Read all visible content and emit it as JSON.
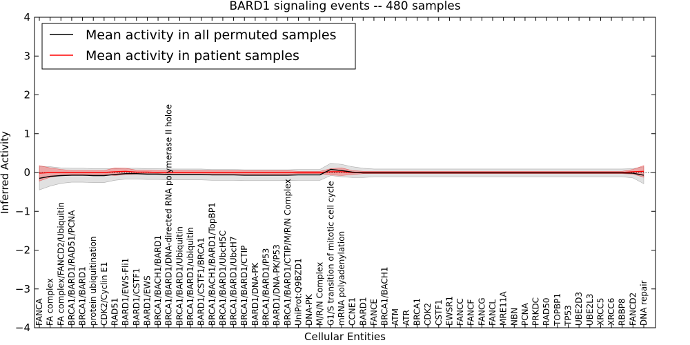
{
  "chart_data": {
    "type": "line",
    "title": "BARD1 signaling events -- 480 samples",
    "xlabel": "Cellular Entities",
    "ylabel": "Inferred Activity",
    "ylim": [
      -4,
      4
    ],
    "yticks": [
      "−4",
      "−3",
      "−2",
      "−1",
      "0",
      "1",
      "2",
      "3",
      "4"
    ],
    "categories": [
      "FANCA",
      "FA complex",
      "FA complex/FANCD2/Ubiquitin",
      "BRCA1/BARD1/RAD51/PCNA",
      "BRCA1/BARD1",
      "protein ubiquitination",
      "CDK2/Cyclin E1",
      "RAD51",
      "BARD1/EWS-Fli1",
      "BARD1/CSTF1",
      "BARD1/EWS",
      "BRCA1/BACH1/BARD1",
      "BRCA1/BARD1/DNA-directed RNA polymerase II holoe",
      "BRCA1/BARD1/Ubiquitin",
      "BRCA1/BARD1/ubiquitin",
      "BARD1/CSTF1/BRCA1",
      "BRCA1/BACH1/BARD1/TopBP1",
      "BRCA1/BARD1/UbcH5C",
      "BRCA1/BARD1/UbcH7",
      "BRCA1/BARD1/CTIP",
      "BARD1/DNA-PK",
      "BRCA1/BARD1/P53",
      "BARD1/DNA-PK/P53",
      "BRCA1/BARD1/CTIP/M/R/N Complex",
      "UniProt:Q9BZD1",
      "DNA-PK",
      "M/R/N Complex",
      "G1/S transition of mitotic cell cycle",
      "mRNA polyadenylation",
      "CCNE1",
      "BARD1",
      "FANCE",
      "BRCA1/BACH1",
      "ATM",
      "ATR",
      "BRCA1",
      "CDK2",
      "CSTF1",
      "EWSR1",
      "FANCC",
      "FANCF",
      "FANCG",
      "FANCL",
      "MRE11A",
      "NBN",
      "PCNA",
      "PRKDC",
      "RAD50",
      "TOPBP1",
      "TP53",
      "UBE2D3",
      "UBE2L3",
      "XRCC5",
      "XRCC6",
      "RBBP8",
      "FANCD2",
      "DNA repair"
    ],
    "series": [
      {
        "name": "Mean activity in all permuted samples",
        "color": "#000000",
        "values": [
          -0.15,
          -0.1,
          -0.08,
          -0.07,
          -0.07,
          -0.08,
          -0.08,
          -0.05,
          -0.03,
          -0.03,
          -0.04,
          -0.04,
          -0.05,
          -0.05,
          -0.05,
          -0.05,
          -0.06,
          -0.06,
          -0.06,
          -0.07,
          -0.07,
          -0.07,
          -0.07,
          -0.07,
          -0.06,
          -0.06,
          -0.06,
          0.08,
          0.05,
          0.01,
          -0.01,
          -0.01,
          -0.01,
          -0.01,
          -0.01,
          -0.01,
          -0.01,
          -0.01,
          -0.01,
          -0.01,
          -0.01,
          -0.01,
          -0.01,
          -0.01,
          -0.01,
          -0.01,
          -0.01,
          -0.01,
          -0.01,
          -0.01,
          -0.01,
          -0.01,
          -0.01,
          -0.01,
          -0.01,
          -0.02,
          -0.07
        ],
        "band": [
          0.3,
          0.25,
          0.2,
          0.18,
          0.18,
          0.18,
          0.18,
          0.15,
          0.14,
          0.14,
          0.14,
          0.14,
          0.14,
          0.14,
          0.14,
          0.14,
          0.14,
          0.14,
          0.14,
          0.14,
          0.14,
          0.14,
          0.14,
          0.14,
          0.14,
          0.14,
          0.14,
          0.16,
          0.16,
          0.14,
          0.12,
          0.1,
          0.1,
          0.1,
          0.1,
          0.1,
          0.1,
          0.1,
          0.1,
          0.1,
          0.1,
          0.1,
          0.1,
          0.1,
          0.1,
          0.1,
          0.1,
          0.1,
          0.1,
          0.1,
          0.1,
          0.1,
          0.1,
          0.1,
          0.1,
          0.12,
          0.22
        ]
      },
      {
        "name": "Mean activity in patient samples",
        "color": "#ff0000",
        "values": [
          -0.02,
          0.0,
          0.0,
          0.0,
          0.0,
          0.0,
          0.0,
          0.02,
          0.03,
          0.01,
          0.01,
          0.0,
          0.0,
          0.0,
          0.0,
          0.0,
          0.0,
          0.0,
          0.0,
          0.0,
          0.0,
          0.0,
          0.0,
          0.0,
          0.0,
          0.0,
          0.0,
          0.02,
          0.02,
          0.0,
          0.0,
          0.0,
          0.0,
          0.0,
          0.0,
          0.0,
          0.0,
          0.0,
          0.0,
          0.0,
          0.0,
          0.0,
          0.0,
          0.0,
          0.0,
          0.0,
          0.0,
          0.0,
          0.0,
          0.0,
          0.0,
          0.0,
          0.0,
          0.0,
          0.0,
          0.02,
          0.03
        ],
        "band": [
          0.2,
          0.12,
          0.08,
          0.05,
          0.05,
          0.05,
          0.05,
          0.1,
          0.08,
          0.05,
          0.05,
          0.05,
          0.05,
          0.05,
          0.05,
          0.05,
          0.05,
          0.05,
          0.05,
          0.05,
          0.05,
          0.05,
          0.05,
          0.05,
          0.03,
          0.03,
          0.03,
          0.08,
          0.1,
          0.05,
          0.03,
          0.03,
          0.03,
          0.03,
          0.03,
          0.03,
          0.03,
          0.03,
          0.03,
          0.03,
          0.03,
          0.03,
          0.03,
          0.03,
          0.03,
          0.03,
          0.03,
          0.03,
          0.03,
          0.03,
          0.03,
          0.03,
          0.03,
          0.03,
          0.03,
          0.06,
          0.15
        ]
      }
    ],
    "legend": {
      "position": "top-left",
      "entries": [
        "Mean activity in all permuted samples",
        "Mean activity in patient samples"
      ]
    }
  }
}
